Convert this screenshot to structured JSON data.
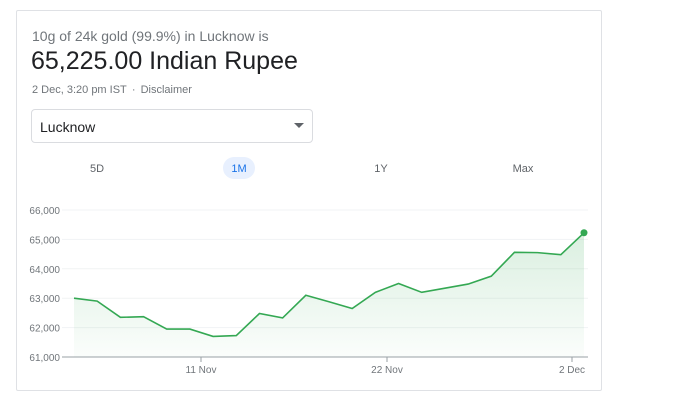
{
  "header": {
    "subtitle": "10g of 24k gold (99.9%) in Lucknow is",
    "price": "65,225.00 Indian Rupee",
    "timestamp": "2 Dec, 3:20 pm IST",
    "separator": "·",
    "disclaimer": "Disclaimer"
  },
  "dropdown": {
    "selected": "Lucknow"
  },
  "tabs": {
    "items": [
      "5D",
      "1M",
      "1Y",
      "Max"
    ],
    "active": 1
  },
  "chart_data": {
    "type": "line",
    "values": [
      63000,
      62900,
      62350,
      62370,
      61950,
      61950,
      61700,
      61730,
      62480,
      62330,
      63100,
      62880,
      62650,
      63200,
      63500,
      63200,
      63340,
      63480,
      63750,
      64560,
      64550,
      64480,
      65225
    ],
    "x_tick_labels": [
      "11 Nov",
      "22 Nov",
      "2 Dec"
    ],
    "color": "#34a853",
    "ylim": [
      61000,
      66000
    ],
    "yticks": [
      {
        "value": 61000,
        "label": "61,000"
      },
      {
        "value": 62000,
        "label": "62,000"
      },
      {
        "value": 63000,
        "label": "63,000"
      },
      {
        "value": 64000,
        "label": "64,000"
      },
      {
        "value": 65000,
        "label": "65,000"
      },
      {
        "value": 66000,
        "label": "66,000"
      }
    ],
    "grid": true
  }
}
